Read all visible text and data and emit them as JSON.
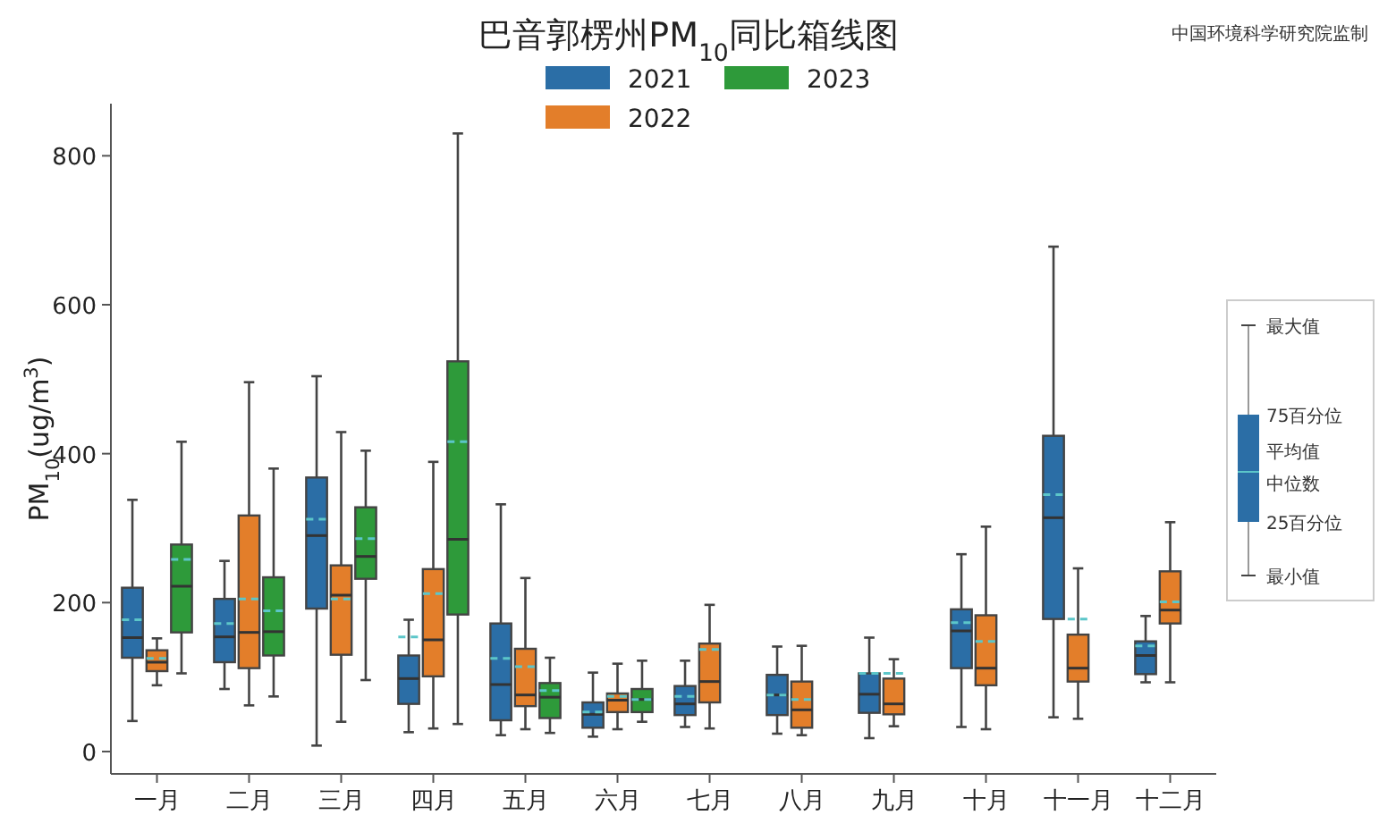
{
  "chart_data": {
    "type": "box",
    "title": "巴音郭楞州PM$_{10}$同比箱线图",
    "ylabel": "PM$_{10}$(ug/m$^{3}$)",
    "categories": [
      "一月",
      "二月",
      "三月",
      "四月",
      "五月",
      "六月",
      "七月",
      "八月",
      "九月",
      "十月",
      "十一月",
      "十二月"
    ],
    "ylim": [
      -30,
      870
    ],
    "yticks": [
      0,
      200,
      400,
      600,
      800
    ],
    "legend": "top",
    "annotations": [
      "中国环境科学研究院监制",
      "最大值",
      "75百分位",
      "平均值",
      "中位数",
      "25百分位",
      "最小值"
    ],
    "series": [
      {
        "name": "2021",
        "color": "#2b6ea6",
        "boxes": [
          {
            "low": 41,
            "q1": 126,
            "median": 153,
            "q3": 220,
            "high": 338,
            "mean": 177
          },
          {
            "low": 84,
            "q1": 120,
            "median": 154,
            "q3": 205,
            "high": 256,
            "mean": 172
          },
          {
            "low": 8,
            "q1": 192,
            "median": 290,
            "q3": 368,
            "high": 504,
            "mean": 312
          },
          {
            "low": 26,
            "q1": 64,
            "median": 98,
            "q3": 129,
            "high": 177,
            "mean": 154
          },
          {
            "low": 22,
            "q1": 42,
            "median": 90,
            "q3": 172,
            "high": 332,
            "mean": 125
          },
          {
            "low": 20,
            "q1": 32,
            "median": 50,
            "q3": 66,
            "high": 106,
            "mean": 53
          },
          {
            "low": 33,
            "q1": 49,
            "median": 64,
            "q3": 88,
            "high": 122,
            "mean": 74
          },
          {
            "low": 24,
            "q1": 49,
            "median": 76,
            "q3": 103,
            "high": 141,
            "mean": 76
          },
          {
            "low": 18,
            "q1": 52,
            "median": 77,
            "q3": 105,
            "high": 153,
            "mean": 105
          },
          {
            "low": 33,
            "q1": 112,
            "median": 162,
            "q3": 191,
            "high": 265,
            "mean": 173
          },
          {
            "low": 46,
            "q1": 178,
            "median": 314,
            "q3": 424,
            "high": 678,
            "mean": 345
          },
          {
            "low": 93,
            "q1": 104,
            "median": 129,
            "q3": 148,
            "high": 182,
            "mean": 142
          }
        ]
      },
      {
        "name": "2022",
        "color": "#e37e2a",
        "boxes": [
          {
            "low": 89,
            "q1": 108,
            "median": 120,
            "q3": 136,
            "high": 152,
            "mean": 125
          },
          {
            "low": 62,
            "q1": 112,
            "median": 160,
            "q3": 317,
            "high": 496,
            "mean": 205
          },
          {
            "low": 40,
            "q1": 130,
            "median": 210,
            "q3": 250,
            "high": 429,
            "mean": 205
          },
          {
            "low": 31,
            "q1": 101,
            "median": 150,
            "q3": 245,
            "high": 389,
            "mean": 212
          },
          {
            "low": 30,
            "q1": 61,
            "median": 76,
            "q3": 138,
            "high": 233,
            "mean": 114
          },
          {
            "low": 30,
            "q1": 53,
            "median": 69,
            "q3": 78,
            "high": 118,
            "mean": 74
          },
          {
            "low": 31,
            "q1": 66,
            "median": 94,
            "q3": 145,
            "high": 197,
            "mean": 137
          },
          {
            "low": 22,
            "q1": 32,
            "median": 56,
            "q3": 94,
            "high": 142,
            "mean": 70
          },
          {
            "low": 34,
            "q1": 50,
            "median": 64,
            "q3": 98,
            "high": 124,
            "mean": 105
          },
          {
            "low": 30,
            "q1": 89,
            "median": 112,
            "q3": 183,
            "high": 302,
            "mean": 148
          },
          {
            "low": 44,
            "q1": 94,
            "median": 112,
            "q3": 157,
            "high": 246,
            "mean": 178
          },
          {
            "low": 93,
            "q1": 172,
            "median": 190,
            "q3": 242,
            "high": 308,
            "mean": 201
          }
        ]
      },
      {
        "name": "2023",
        "color": "#2e9a3a",
        "boxes": [
          {
            "low": 105,
            "q1": 160,
            "median": 222,
            "q3": 278,
            "high": 416,
            "mean": 258
          },
          {
            "low": 74,
            "q1": 129,
            "median": 161,
            "q3": 234,
            "high": 380,
            "mean": 189
          },
          {
            "low": 96,
            "q1": 232,
            "median": 262,
            "q3": 328,
            "high": 404,
            "mean": 286
          },
          {
            "low": 37,
            "q1": 184,
            "median": 285,
            "q3": 524,
            "high": 830,
            "mean": 416
          },
          {
            "low": 25,
            "q1": 45,
            "median": 73,
            "q3": 92,
            "high": 126,
            "mean": 82
          },
          {
            "low": 40,
            "q1": 53,
            "median": 70,
            "q3": 84,
            "high": 122,
            "mean": 70
          },
          null,
          null,
          null,
          null,
          null,
          null
        ]
      }
    ]
  }
}
